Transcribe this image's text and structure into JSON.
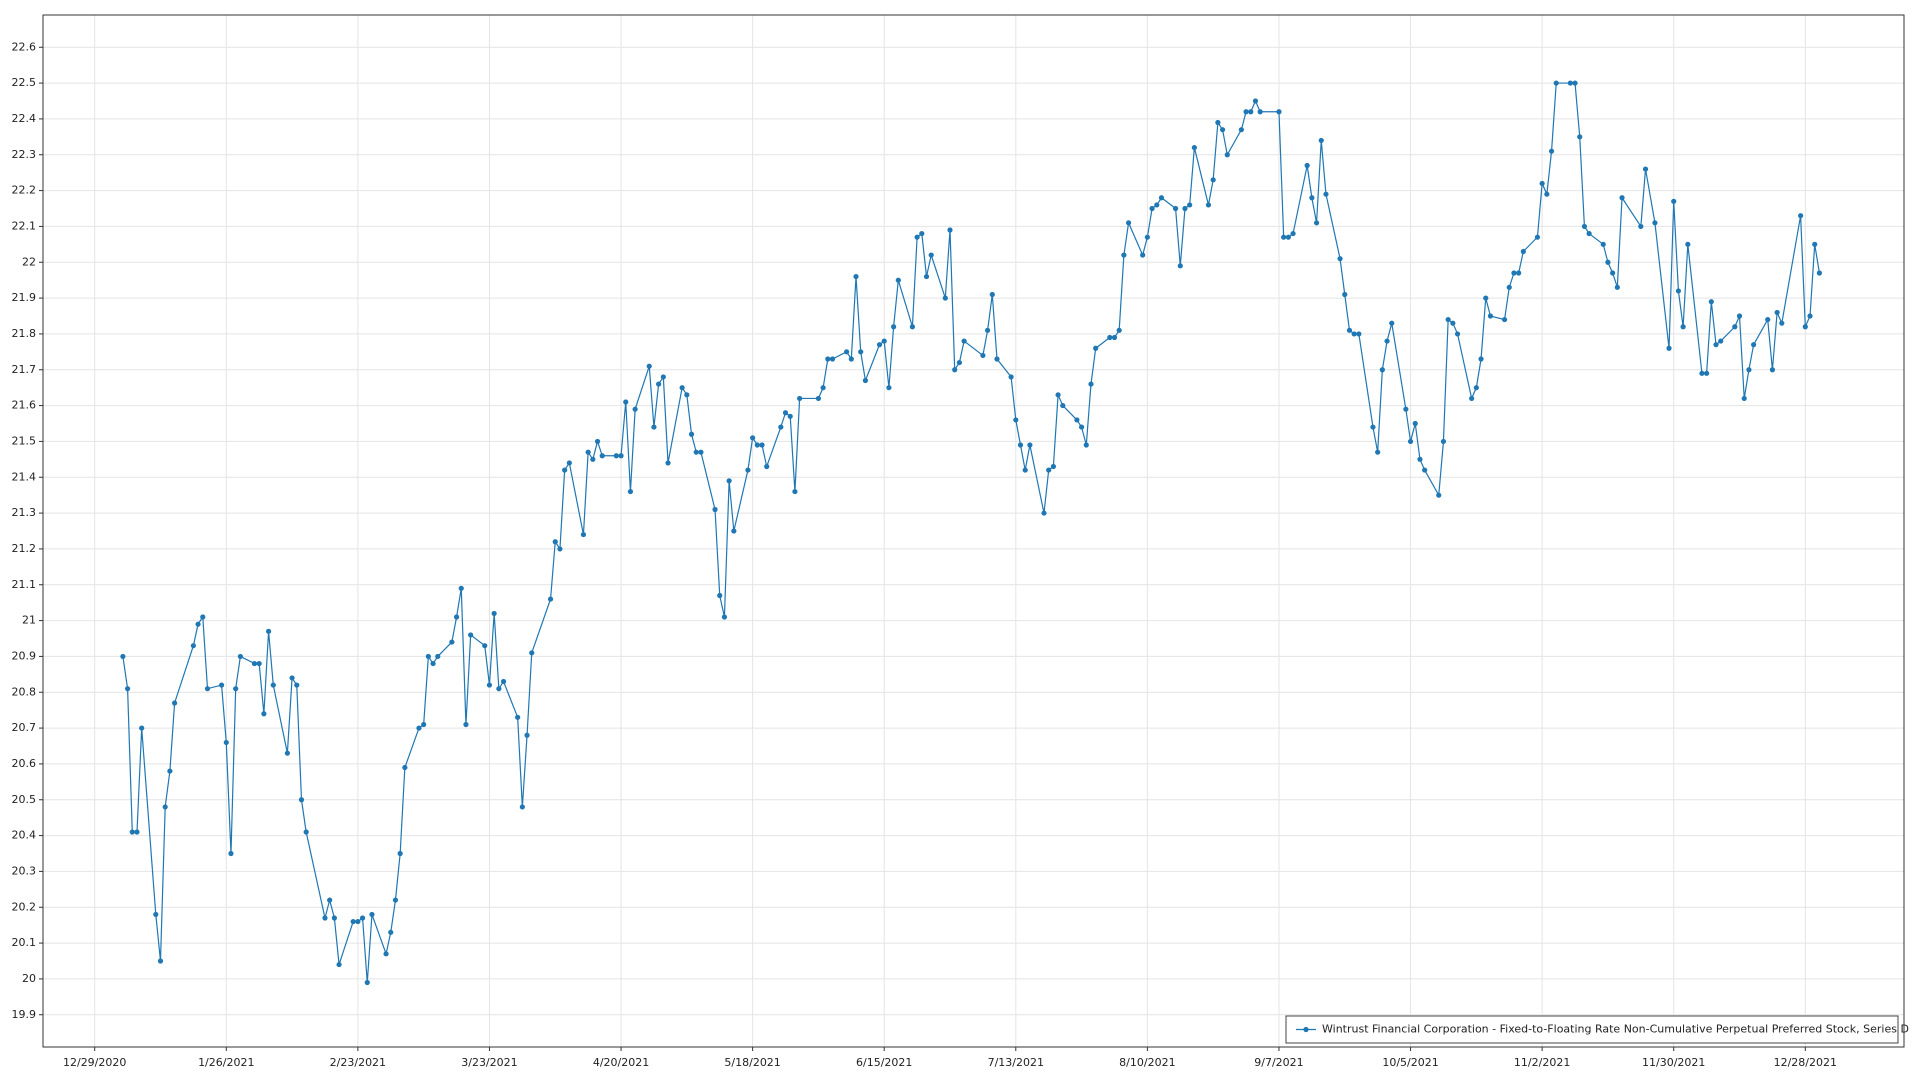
{
  "chart_data": {
    "type": "line",
    "x": [
      "2021-01-04",
      "2021-01-05",
      "2021-01-06",
      "2021-01-07",
      "2021-01-08",
      "2021-01-11",
      "2021-01-12",
      "2021-01-13",
      "2021-01-14",
      "2021-01-15",
      "2021-01-19",
      "2021-01-20",
      "2021-01-21",
      "2021-01-22",
      "2021-01-25",
      "2021-01-26",
      "2021-01-27",
      "2021-01-28",
      "2021-01-29",
      "2021-02-01",
      "2021-02-02",
      "2021-02-03",
      "2021-02-04",
      "2021-02-05",
      "2021-02-08",
      "2021-02-09",
      "2021-02-10",
      "2021-02-11",
      "2021-02-12",
      "2021-02-16",
      "2021-02-17",
      "2021-02-18",
      "2021-02-19",
      "2021-02-22",
      "2021-02-23",
      "2021-02-24",
      "2021-02-25",
      "2021-02-26",
      "2021-03-01",
      "2021-03-02",
      "2021-03-03",
      "2021-03-04",
      "2021-03-05",
      "2021-03-08",
      "2021-03-09",
      "2021-03-10",
      "2021-03-11",
      "2021-03-12",
      "2021-03-15",
      "2021-03-16",
      "2021-03-17",
      "2021-03-18",
      "2021-03-19",
      "2021-03-22",
      "2021-03-23",
      "2021-03-24",
      "2021-03-25",
      "2021-03-26",
      "2021-03-29",
      "2021-03-30",
      "2021-03-31",
      "2021-04-01",
      "2021-04-05",
      "2021-04-06",
      "2021-04-07",
      "2021-04-08",
      "2021-04-09",
      "2021-04-12",
      "2021-04-13",
      "2021-04-14",
      "2021-04-15",
      "2021-04-16",
      "2021-04-19",
      "2021-04-20",
      "2021-04-21",
      "2021-04-22",
      "2021-04-23",
      "2021-04-26",
      "2021-04-27",
      "2021-04-28",
      "2021-04-29",
      "2021-04-30",
      "2021-05-03",
      "2021-05-04",
      "2021-05-05",
      "2021-05-06",
      "2021-05-07",
      "2021-05-10",
      "2021-05-11",
      "2021-05-12",
      "2021-05-13",
      "2021-05-14",
      "2021-05-17",
      "2021-05-18",
      "2021-05-19",
      "2021-05-20",
      "2021-05-21",
      "2021-05-24",
      "2021-05-25",
      "2021-05-26",
      "2021-05-27",
      "2021-05-28",
      "2021-06-01",
      "2021-06-02",
      "2021-06-03",
      "2021-06-04",
      "2021-06-07",
      "2021-06-08",
      "2021-06-09",
      "2021-06-10",
      "2021-06-11",
      "2021-06-14",
      "2021-06-15",
      "2021-06-16",
      "2021-06-17",
      "2021-06-18",
      "2021-06-21",
      "2021-06-22",
      "2021-06-23",
      "2021-06-24",
      "2021-06-25",
      "2021-06-28",
      "2021-06-29",
      "2021-06-30",
      "2021-07-01",
      "2021-07-02",
      "2021-07-06",
      "2021-07-07",
      "2021-07-08",
      "2021-07-09",
      "2021-07-12",
      "2021-07-13",
      "2021-07-14",
      "2021-07-15",
      "2021-07-16",
      "2021-07-19",
      "2021-07-20",
      "2021-07-21",
      "2021-07-22",
      "2021-07-23",
      "2021-07-26",
      "2021-07-27",
      "2021-07-28",
      "2021-07-29",
      "2021-07-30",
      "2021-08-02",
      "2021-08-03",
      "2021-08-04",
      "2021-08-05",
      "2021-08-06",
      "2021-08-09",
      "2021-08-10",
      "2021-08-11",
      "2021-08-12",
      "2021-08-13",
      "2021-08-16",
      "2021-08-17",
      "2021-08-18",
      "2021-08-19",
      "2021-08-20",
      "2021-08-23",
      "2021-08-24",
      "2021-08-25",
      "2021-08-26",
      "2021-08-27",
      "2021-08-30",
      "2021-08-31",
      "2021-09-01",
      "2021-09-02",
      "2021-09-03",
      "2021-09-07",
      "2021-09-08",
      "2021-09-09",
      "2021-09-10",
      "2021-09-13",
      "2021-09-14",
      "2021-09-15",
      "2021-09-16",
      "2021-09-17",
      "2021-09-20",
      "2021-09-21",
      "2021-09-22",
      "2021-09-23",
      "2021-09-24",
      "2021-09-27",
      "2021-09-28",
      "2021-09-29",
      "2021-09-30",
      "2021-10-01",
      "2021-10-04",
      "2021-10-05",
      "2021-10-06",
      "2021-10-07",
      "2021-10-08",
      "2021-10-11",
      "2021-10-12",
      "2021-10-13",
      "2021-10-14",
      "2021-10-15",
      "2021-10-18",
      "2021-10-19",
      "2021-10-20",
      "2021-10-21",
      "2021-10-22",
      "2021-10-25",
      "2021-10-26",
      "2021-10-27",
      "2021-10-28",
      "2021-10-29",
      "2021-11-01",
      "2021-11-02",
      "2021-11-03",
      "2021-11-04",
      "2021-11-05",
      "2021-11-08",
      "2021-11-09",
      "2021-11-10",
      "2021-11-11",
      "2021-11-12",
      "2021-11-15",
      "2021-11-16",
      "2021-11-17",
      "2021-11-18",
      "2021-11-19",
      "2021-11-23",
      "2021-11-24",
      "2021-11-26",
      "2021-11-29",
      "2021-11-30",
      "2021-12-01",
      "2021-12-02",
      "2021-12-03",
      "2021-12-06",
      "2021-12-07",
      "2021-12-08",
      "2021-12-09",
      "2021-12-10",
      "2021-12-13",
      "2021-12-14",
      "2021-12-15",
      "2021-12-16",
      "2021-12-17",
      "2021-12-20",
      "2021-12-21",
      "2021-12-22",
      "2021-12-23",
      "2021-12-27",
      "2021-12-28",
      "2021-12-29",
      "2021-12-30",
      "2021-12-31"
    ],
    "series": [
      {
        "name": "Wintrust Financial Corporation - Fixed-to-Floating Rate Non-Cumulative Perpetual Preferred Stock, Series D",
        "color": "#1f77b4",
        "values": [
          20.9,
          20.81,
          20.41,
          20.41,
          20.7,
          20.18,
          20.05,
          20.48,
          20.58,
          20.77,
          20.93,
          20.99,
          21.01,
          20.81,
          20.82,
          20.66,
          20.35,
          20.81,
          20.9,
          20.88,
          20.88,
          20.74,
          20.97,
          20.82,
          20.63,
          20.84,
          20.82,
          20.5,
          20.41,
          20.17,
          20.22,
          20.17,
          20.04,
          20.16,
          20.16,
          20.17,
          19.99,
          20.18,
          20.07,
          20.13,
          20.22,
          20.35,
          20.59,
          20.7,
          20.71,
          20.9,
          20.88,
          20.9,
          20.94,
          21.01,
          21.09,
          20.71,
          20.96,
          20.93,
          20.82,
          21.02,
          20.81,
          20.83,
          20.73,
          20.48,
          20.68,
          20.91,
          21.06,
          21.22,
          21.2,
          21.42,
          21.44,
          21.24,
          21.47,
          21.45,
          21.5,
          21.46,
          21.46,
          21.46,
          21.61,
          21.36,
          21.59,
          21.71,
          21.54,
          21.66,
          21.68,
          21.44,
          21.65,
          21.63,
          21.52,
          21.47,
          21.47,
          21.31,
          21.07,
          21.01,
          21.39,
          21.25,
          21.42,
          21.51,
          21.49,
          21.49,
          21.43,
          21.54,
          21.58,
          21.57,
          21.36,
          21.62,
          21.62,
          21.65,
          21.73,
          21.73,
          21.75,
          21.73,
          21.96,
          21.75,
          21.67,
          21.77,
          21.78,
          21.65,
          21.82,
          21.95,
          21.82,
          22.07,
          22.08,
          21.96,
          22.02,
          21.9,
          22.09,
          21.7,
          21.72,
          21.78,
          21.74,
          21.81,
          21.91,
          21.73,
          21.68,
          21.56,
          21.49,
          21.42,
          21.49,
          21.3,
          21.42,
          21.43,
          21.63,
          21.6,
          21.56,
          21.54,
          21.49,
          21.66,
          21.76,
          21.79,
          21.79,
          21.81,
          22.02,
          22.11,
          22.02,
          22.07,
          22.15,
          22.16,
          22.18,
          22.15,
          21.99,
          22.15,
          22.16,
          22.32,
          22.16,
          22.23,
          22.39,
          22.37,
          22.3,
          22.37,
          22.42,
          22.42,
          22.45,
          22.42,
          22.42,
          22.07,
          22.07,
          22.08,
          22.27,
          22.18,
          22.11,
          22.34,
          22.19,
          22.01,
          21.91,
          21.81,
          21.8,
          21.8,
          21.54,
          21.47,
          21.7,
          21.78,
          21.83,
          21.59,
          21.5,
          21.55,
          21.45,
          21.42,
          21.35,
          21.5,
          21.84,
          21.83,
          21.8,
          21.62,
          21.65,
          21.73,
          21.9,
          21.85,
          21.84,
          21.93,
          21.97,
          21.97,
          22.03,
          22.07,
          22.22,
          22.19,
          22.31,
          22.5,
          22.5,
          22.5,
          22.35,
          22.1,
          22.08,
          22.05,
          22.0,
          21.97,
          21.93,
          22.18,
          22.1,
          22.26,
          22.11,
          21.76,
          22.17,
          21.92,
          21.82,
          22.05,
          21.69,
          21.69,
          21.89,
          21.77,
          21.78,
          21.82,
          21.85,
          21.62,
          21.7,
          21.77,
          21.84,
          21.7,
          21.86,
          21.83,
          22.13,
          21.82,
          21.85,
          22.05,
          21.97
        ]
      }
    ],
    "xlim": [
      "2020-12-18",
      "2022-01-18"
    ],
    "xticks": [
      {
        "value": "2020-12-29",
        "label": "12/29/2020"
      },
      {
        "value": "2021-01-26",
        "label": "1/26/2021"
      },
      {
        "value": "2021-02-23",
        "label": "2/23/2021"
      },
      {
        "value": "2021-03-23",
        "label": "3/23/2021"
      },
      {
        "value": "2021-04-20",
        "label": "4/20/2021"
      },
      {
        "value": "2021-05-18",
        "label": "5/18/2021"
      },
      {
        "value": "2021-06-15",
        "label": "6/15/2021"
      },
      {
        "value": "2021-07-13",
        "label": "7/13/2021"
      },
      {
        "value": "2021-08-10",
        "label": "8/10/2021"
      },
      {
        "value": "2021-09-07",
        "label": "9/7/2021"
      },
      {
        "value": "2021-10-05",
        "label": "10/5/2021"
      },
      {
        "value": "2021-11-02",
        "label": "11/2/2021"
      },
      {
        "value": "2021-11-30",
        "label": "11/30/2021"
      },
      {
        "value": "2021-12-28",
        "label": "12/28/2021"
      }
    ],
    "ylim": [
      19.81,
      22.69
    ],
    "yticks": [
      19.9,
      20,
      20.1,
      20.2,
      20.3,
      20.4,
      20.5,
      20.6,
      20.7,
      20.8,
      20.9,
      21,
      21.1,
      21.2,
      21.3,
      21.4,
      21.5,
      21.6,
      21.7,
      21.8,
      21.9,
      22,
      22.1,
      22.2,
      22.3,
      22.4,
      22.5,
      22.6
    ],
    "grid": true,
    "legend": "lower right"
  }
}
